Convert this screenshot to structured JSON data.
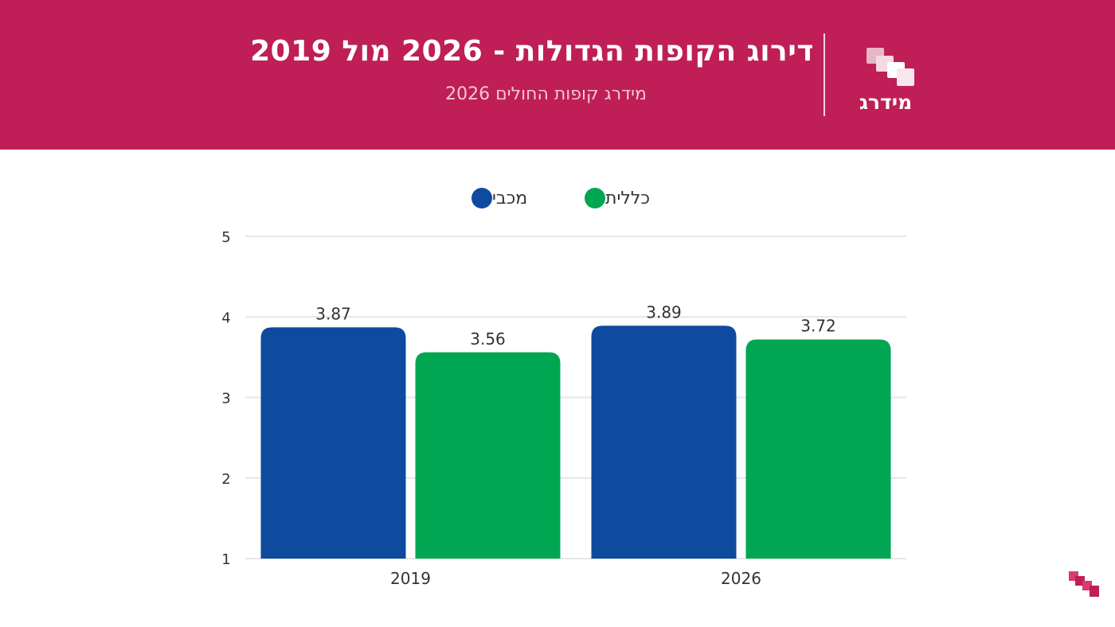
{
  "header": {
    "title": "דירוג הקופות הגדולות - 2026 מול 2019",
    "subtitle": "מידרג קופות החולים 2026",
    "logo_text": "מידרג",
    "background_color": "#bf1e56"
  },
  "legend": [
    {
      "label": "מכבי",
      "color": "#0e4a9e"
    },
    {
      "label": "כללית",
      "color": "#00a651"
    }
  ],
  "chart_data": {
    "type": "bar",
    "title": "",
    "xlabel": "",
    "ylabel": "",
    "categories": [
      "2019",
      "2026"
    ],
    "series": [
      {
        "name": "מכבי",
        "values": [
          3.87,
          3.89
        ],
        "color": "#0e4a9e"
      },
      {
        "name": "כללית",
        "values": [
          3.56,
          3.72
        ],
        "color": "#00a651"
      }
    ],
    "ylim": [
      1,
      5
    ],
    "yticks": [
      1,
      2,
      3,
      4,
      5
    ],
    "grid": true,
    "legend_position": "top-center",
    "data_labels": true
  }
}
